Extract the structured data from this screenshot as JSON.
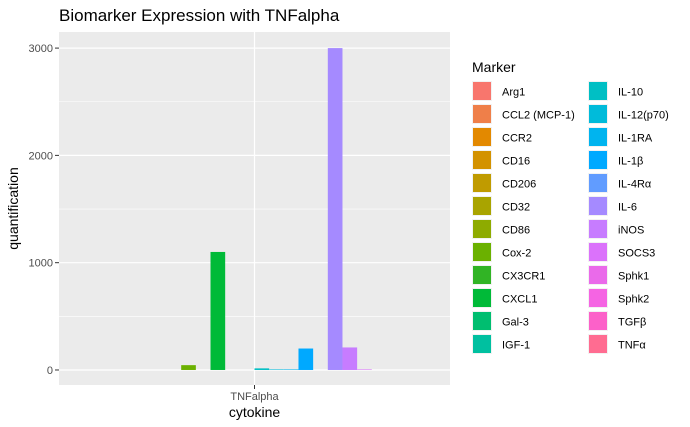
{
  "chart_data": {
    "type": "bar",
    "title": "Biomarker Expression with TNFalpha",
    "xlabel": "cytokine",
    "ylabel": "quantification",
    "categories": [
      "TNFalpha"
    ],
    "yticks": [
      0,
      1000,
      2000,
      3000
    ],
    "ylim": [
      -140,
      3150
    ],
    "grid": true,
    "background": "#ebebeb",
    "legend": {
      "title": "Marker",
      "placement": "right",
      "columns": 2
    },
    "series": [
      {
        "name": "Arg1",
        "color": "#F8766D",
        "values": [
          0
        ]
      },
      {
        "name": "CCL2 (MCP-1)",
        "color": "#EF7F49",
        "values": [
          0
        ]
      },
      {
        "name": "CCR2",
        "color": "#E38900",
        "values": [
          0
        ]
      },
      {
        "name": "CD16",
        "color": "#D39200",
        "values": [
          0
        ]
      },
      {
        "name": "CD206",
        "color": "#C09B00",
        "values": [
          0
        ]
      },
      {
        "name": "CD32",
        "color": "#A9A400",
        "values": [
          0
        ]
      },
      {
        "name": "CD86",
        "color": "#8EAB00",
        "values": [
          0
        ]
      },
      {
        "name": "Cox-2",
        "color": "#6BB100",
        "values": [
          45
        ]
      },
      {
        "name": "CX3CR1",
        "color": "#31B425",
        "values": [
          0
        ]
      },
      {
        "name": "CXCL1",
        "color": "#00BA38",
        "values": [
          1100
        ]
      },
      {
        "name": "Gal-3",
        "color": "#00BE70",
        "values": [
          0
        ]
      },
      {
        "name": "IGF-1",
        "color": "#00C0A0",
        "values": [
          0
        ]
      },
      {
        "name": "IL-10",
        "color": "#00BFC4",
        "values": [
          15
        ]
      },
      {
        "name": "IL-12(p70)",
        "color": "#00BBDA",
        "values": [
          5
        ]
      },
      {
        "name": "IL-1RA",
        "color": "#00B4EF",
        "values": [
          5
        ]
      },
      {
        "name": "IL-1β",
        "color": "#00A9FF",
        "values": [
          200
        ]
      },
      {
        "name": "IL-4Rα",
        "color": "#619CFF",
        "values": [
          0
        ]
      },
      {
        "name": "IL-6",
        "color": "#A58AFF",
        "values": [
          3000
        ]
      },
      {
        "name": "iNOS",
        "color": "#C77CFF",
        "values": [
          210
        ]
      },
      {
        "name": "SOCS3",
        "color": "#DB72FB",
        "values": [
          5
        ]
      },
      {
        "name": "Sphk1",
        "color": "#EA6AEA",
        "values": [
          0
        ]
      },
      {
        "name": "Sphk2",
        "color": "#F564E3",
        "values": [
          0
        ]
      },
      {
        "name": "TGFβ",
        "color": "#FC61C9",
        "values": [
          0
        ]
      },
      {
        "name": "TNFα",
        "color": "#FF6C91",
        "values": [
          0
        ]
      }
    ]
  }
}
